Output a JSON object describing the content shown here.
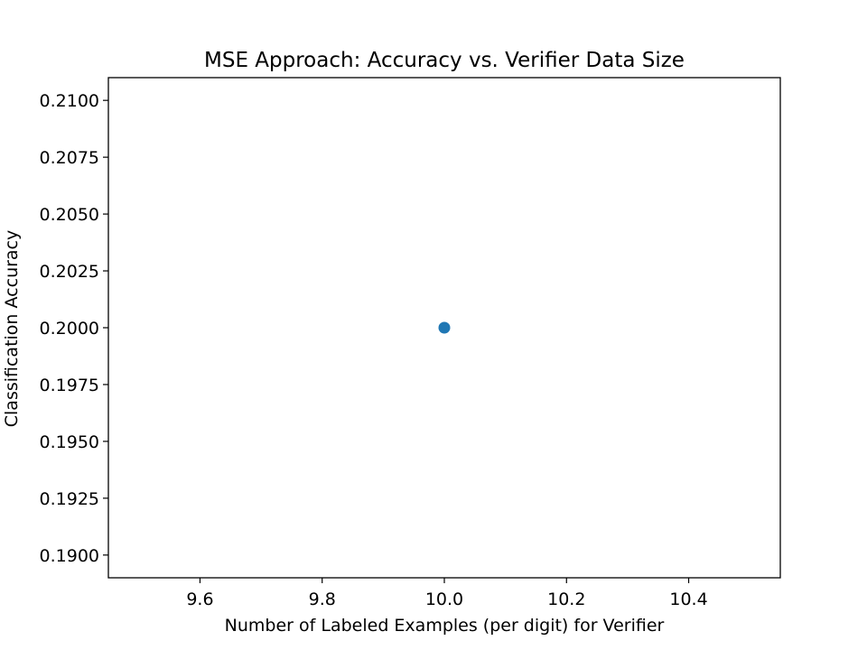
{
  "chart_data": {
    "type": "scatter",
    "title": "MSE Approach: Accuracy vs. Verifier Data Size",
    "xlabel": "Number of Labeled Examples (per digit) for Verifier",
    "ylabel": "Classification Accuracy",
    "xlim": [
      9.45,
      10.55
    ],
    "ylim": [
      0.189,
      0.211
    ],
    "xticks": [
      "9.6",
      "9.8",
      "10.0",
      "10.2",
      "10.4"
    ],
    "yticks": [
      "0.1900",
      "0.1925",
      "0.1950",
      "0.1975",
      "0.2000",
      "0.2025",
      "0.2050",
      "0.2075",
      "0.2100"
    ],
    "grid": false,
    "point_color": "#1f77b4",
    "points": [
      {
        "x": 10.0,
        "y": 0.2
      }
    ]
  }
}
